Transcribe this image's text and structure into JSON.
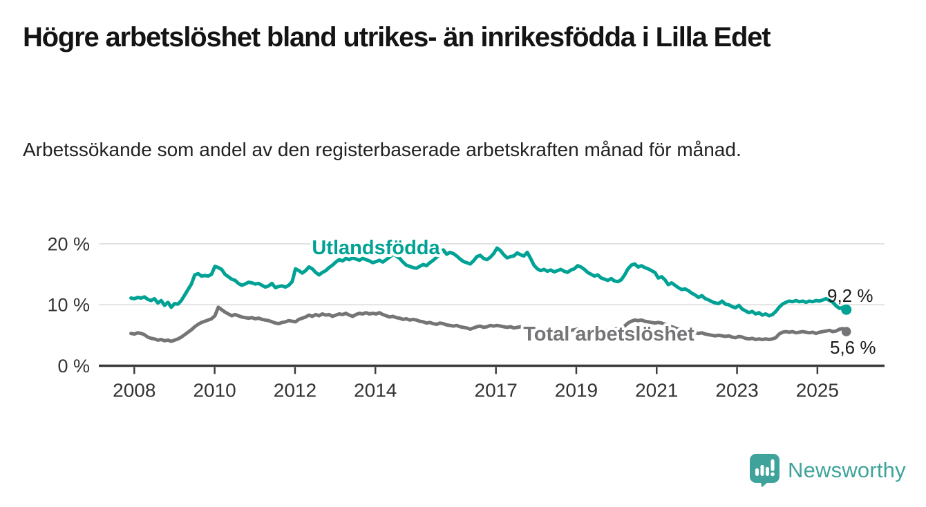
{
  "header": {
    "title": "Högre arbetslöshet bland utrikes- än inrikesfödda i Lilla Edet",
    "subtitle": "Arbetssökande som andel av den registerbaserade arbetskraften månad för månad."
  },
  "branding": {
    "logo_text": "Newsworthy",
    "logo_icon": "bar-chart-speech-bubble-icon",
    "brand_teal": "#3fa39b"
  },
  "colors": {
    "foreign_born_line": "#00a295",
    "total_line": "#757578",
    "grid": "#d9d9d9",
    "axis": "#3b3b3b",
    "tick_text": "#333333",
    "value_text": "#1a1a1a",
    "background": "#ffffff"
  },
  "chart_data": {
    "type": "line",
    "unit": "%",
    "frequency": "monthly",
    "start_month": "2007-12",
    "end_month": "2025-09",
    "ylim": [
      0,
      22.5
    ],
    "grid": "horizontal-only",
    "y_ticks": [
      {
        "value": 20,
        "label": "20 %"
      },
      {
        "value": 10,
        "label": "10 %"
      },
      {
        "value": 0,
        "label": "0 %"
      }
    ],
    "x_ticks": [
      {
        "year": 2008,
        "label": "2008"
      },
      {
        "year": 2010,
        "label": "2010"
      },
      {
        "year": 2012,
        "label": "2012"
      },
      {
        "year": 2014,
        "label": "2014"
      },
      {
        "year": 2017,
        "label": "2017"
      },
      {
        "year": 2019,
        "label": "2019"
      },
      {
        "year": 2021,
        "label": "2021"
      },
      {
        "year": 2023,
        "label": "2023"
      },
      {
        "year": 2025,
        "label": "2025"
      }
    ],
    "series": [
      {
        "name": "Utlandsfödda",
        "color": "#00a295",
        "end_label": "9,2 %",
        "end_value": 9.2,
        "values": [
          11.1,
          11.0,
          11.2,
          11.1,
          11.3,
          10.9,
          10.7,
          11.0,
          10.3,
          10.7,
          9.9,
          10.4,
          9.6,
          10.2,
          10.1,
          10.7,
          11.6,
          12.5,
          13.4,
          14.9,
          15.1,
          14.7,
          14.8,
          14.7,
          15.0,
          16.3,
          16.1,
          15.8,
          15.0,
          14.6,
          14.2,
          14.0,
          13.5,
          13.2,
          13.4,
          13.7,
          13.6,
          13.4,
          13.5,
          13.2,
          12.9,
          13.1,
          13.5,
          12.8,
          13.0,
          13.1,
          12.9,
          13.2,
          13.8,
          15.9,
          15.6,
          15.2,
          15.6,
          16.2,
          15.9,
          15.3,
          14.9,
          15.3,
          15.6,
          16.1,
          16.5,
          17.0,
          17.4,
          17.2,
          17.6,
          17.4,
          17.7,
          17.5,
          17.3,
          17.6,
          17.4,
          17.2,
          16.9,
          17.1,
          17.3,
          17.0,
          17.4,
          17.8,
          18.3,
          18.0,
          17.6,
          17.0,
          16.5,
          16.3,
          16.1,
          16.0,
          16.3,
          16.6,
          16.4,
          16.9,
          17.3,
          17.8,
          18.2,
          19.0,
          18.3,
          18.6,
          18.4,
          18.0,
          17.5,
          17.1,
          16.9,
          16.7,
          17.2,
          17.9,
          18.1,
          17.6,
          17.4,
          17.8,
          18.4,
          19.3,
          18.9,
          18.2,
          17.7,
          17.9,
          18.0,
          18.5,
          18.2,
          18.0,
          18.6,
          17.6,
          16.5,
          15.9,
          15.6,
          15.8,
          15.5,
          15.7,
          15.4,
          15.6,
          15.8,
          15.5,
          15.3,
          15.7,
          15.9,
          16.4,
          16.2,
          15.8,
          15.3,
          15.0,
          14.7,
          14.9,
          14.4,
          14.2,
          14.0,
          14.3,
          13.9,
          13.8,
          14.1,
          14.9,
          15.9,
          16.5,
          16.7,
          16.2,
          16.4,
          16.1,
          15.9,
          15.6,
          15.3,
          14.4,
          14.6,
          14.1,
          13.3,
          13.6,
          13.2,
          12.8,
          12.5,
          12.6,
          12.3,
          11.9,
          11.6,
          11.2,
          11.5,
          11.0,
          10.8,
          10.5,
          10.3,
          10.2,
          10.6,
          10.1,
          10.0,
          9.7,
          9.5,
          9.9,
          9.3,
          9.0,
          8.7,
          8.9,
          8.5,
          8.7,
          8.3,
          8.5,
          8.2,
          8.4,
          8.9,
          9.6,
          10.1,
          10.4,
          10.6,
          10.5,
          10.7,
          10.5,
          10.6,
          10.4,
          10.6,
          10.5,
          10.7,
          10.6,
          10.8,
          11.0,
          10.7,
          10.4,
          9.8,
          9.4,
          9.6,
          9.2
        ]
      },
      {
        "name": "Total arbetslöshet",
        "color": "#757578",
        "end_label": "5,6 %",
        "end_value": 5.6,
        "values": [
          5.3,
          5.2,
          5.4,
          5.3,
          5.1,
          4.7,
          4.5,
          4.4,
          4.2,
          4.3,
          4.1,
          4.2,
          4.0,
          4.2,
          4.4,
          4.7,
          5.1,
          5.5,
          5.9,
          6.4,
          6.8,
          7.1,
          7.3,
          7.5,
          7.7,
          8.2,
          9.6,
          9.2,
          8.8,
          8.5,
          8.2,
          8.4,
          8.2,
          8.0,
          7.9,
          7.8,
          7.9,
          7.7,
          7.8,
          7.6,
          7.5,
          7.4,
          7.2,
          7.0,
          6.9,
          7.1,
          7.2,
          7.4,
          7.3,
          7.2,
          7.6,
          7.8,
          8.0,
          8.3,
          8.1,
          8.4,
          8.2,
          8.5,
          8.3,
          8.4,
          8.1,
          8.3,
          8.5,
          8.4,
          8.6,
          8.3,
          8.1,
          8.4,
          8.6,
          8.5,
          8.7,
          8.5,
          8.6,
          8.5,
          8.7,
          8.4,
          8.2,
          8.0,
          8.1,
          7.9,
          7.8,
          7.6,
          7.7,
          7.5,
          7.6,
          7.5,
          7.3,
          7.2,
          7.0,
          7.1,
          6.9,
          6.8,
          7.0,
          6.9,
          6.7,
          6.6,
          6.5,
          6.6,
          6.4,
          6.3,
          6.2,
          6.0,
          6.2,
          6.4,
          6.5,
          6.3,
          6.4,
          6.6,
          6.5,
          6.6,
          6.5,
          6.4,
          6.3,
          6.4,
          6.2,
          6.3,
          6.4,
          6.2,
          6.3,
          6.1,
          6.0,
          5.9,
          6.0,
          5.9,
          5.8,
          5.9,
          5.7,
          5.8,
          5.9,
          5.8,
          5.7,
          5.8,
          5.9,
          6.0,
          5.9,
          5.8,
          5.9,
          5.8,
          5.7,
          5.9,
          5.8,
          5.7,
          5.8,
          5.9,
          6.0,
          6.1,
          6.2,
          6.5,
          7.0,
          7.3,
          7.5,
          7.4,
          7.5,
          7.3,
          7.2,
          7.1,
          7.0,
          7.1,
          7.0,
          6.8,
          6.6,
          6.4,
          6.2,
          6.0,
          5.9,
          5.8,
          5.6,
          5.5,
          5.4,
          5.3,
          5.4,
          5.2,
          5.1,
          5.0,
          4.9,
          5.0,
          4.9,
          4.8,
          4.9,
          4.7,
          4.6,
          4.8,
          4.7,
          4.5,
          4.4,
          4.5,
          4.3,
          4.4,
          4.3,
          4.4,
          4.3,
          4.4,
          4.6,
          5.2,
          5.5,
          5.6,
          5.5,
          5.6,
          5.4,
          5.5,
          5.6,
          5.5,
          5.4,
          5.5,
          5.3,
          5.5,
          5.6,
          5.7,
          5.8,
          5.6,
          5.7,
          6.0,
          6.1,
          5.6
        ]
      }
    ]
  }
}
